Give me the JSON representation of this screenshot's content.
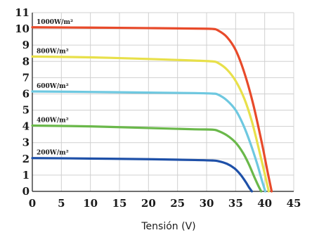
{
  "chart_data": {
    "type": "line",
    "title": "",
    "xlabel": "Tensión (V)",
    "ylabel": "",
    "xlim": [
      0,
      45
    ],
    "ylim": [
      0,
      11
    ],
    "xticks": [
      "0",
      "5",
      "10",
      "15",
      "20",
      "25",
      "30",
      "35",
      "40",
      "45"
    ],
    "yticks": [
      "0",
      "1",
      "2",
      "3",
      "4",
      "5",
      "6",
      "7",
      "8",
      "9",
      "10",
      "11"
    ],
    "grid": true,
    "series": [
      {
        "name": "1000W/m²",
        "color": "#e84a2a",
        "x": [
          0,
          10,
          20,
          28,
          31,
          32,
          33.5,
          35,
          36.5,
          38,
          39.5,
          40.5,
          41.2
        ],
        "y": [
          10.1,
          10.08,
          10.05,
          10.02,
          10.0,
          9.9,
          9.5,
          8.7,
          7.3,
          5.4,
          3.0,
          1.2,
          0
        ]
      },
      {
        "name": "800W/m²",
        "color": "#e8e04a",
        "x": [
          0,
          10,
          20,
          28,
          31,
          32,
          33.5,
          35,
          36.5,
          37.8,
          39,
          40,
          40.7
        ],
        "y": [
          8.3,
          8.25,
          8.15,
          8.05,
          8.0,
          7.9,
          7.5,
          6.8,
          5.7,
          4.3,
          2.6,
          1.1,
          0
        ]
      },
      {
        "name": "600W/m²",
        "color": "#6ec8e0",
        "x": [
          0,
          10,
          20,
          28,
          31,
          32,
          33.5,
          35,
          36.3,
          37.5,
          38.7,
          39.5,
          40.1
        ],
        "y": [
          6.15,
          6.12,
          6.08,
          6.05,
          6.02,
          5.95,
          5.6,
          5.0,
          4.1,
          3.0,
          1.7,
          0.7,
          0
        ]
      },
      {
        "name": "400W/m²",
        "color": "#6ab84a",
        "x": [
          0,
          10,
          20,
          28,
          31,
          32,
          33.5,
          35,
          36.3,
          37.3,
          38.2,
          38.9,
          39.4
        ],
        "y": [
          4.05,
          4.0,
          3.9,
          3.82,
          3.8,
          3.72,
          3.45,
          3.0,
          2.35,
          1.65,
          0.9,
          0.35,
          0
        ]
      },
      {
        "name": "200W/m²",
        "color": "#1e50a8",
        "x": [
          0,
          10,
          20,
          28,
          31,
          32,
          33.5,
          34.8,
          35.8,
          36.7,
          37.3,
          37.8
        ],
        "y": [
          2.05,
          2.02,
          1.98,
          1.93,
          1.9,
          1.86,
          1.7,
          1.42,
          1.05,
          0.6,
          0.25,
          0
        ]
      }
    ]
  }
}
